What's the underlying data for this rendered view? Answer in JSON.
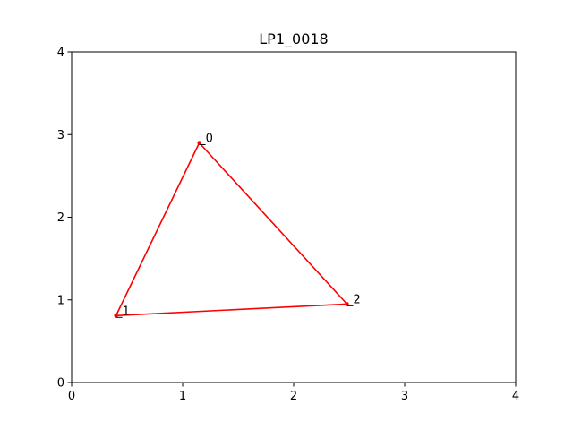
{
  "chart_data": {
    "type": "line",
    "title": "LP1_0018",
    "xlabel": "",
    "ylabel": "",
    "xlim": [
      0,
      4
    ],
    "ylim": [
      0,
      4
    ],
    "xticks": [
      "0",
      "1",
      "2",
      "3",
      "4"
    ],
    "yticks": [
      "0",
      "1",
      "2",
      "3",
      "4"
    ],
    "grid": false,
    "series": [
      {
        "closed": true,
        "color": "#ff0000",
        "points": [
          {
            "label": "0",
            "x": 1.15,
            "y": 2.9
          },
          {
            "label": "1",
            "x": 0.4,
            "y": 0.81
          },
          {
            "label": "2",
            "x": 2.48,
            "y": 0.95
          }
        ]
      }
    ]
  }
}
